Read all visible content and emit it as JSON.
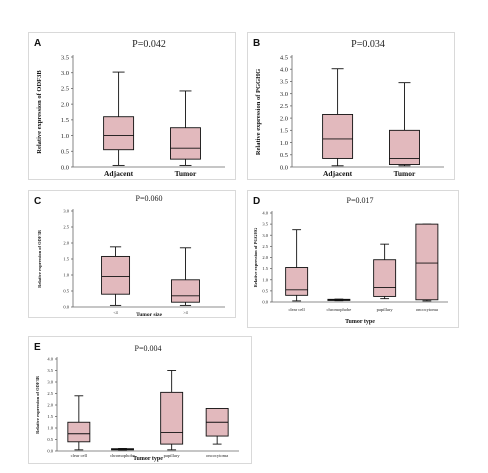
{
  "colors": {
    "box_fill": "#e2b9bd",
    "box_stroke": "#111111",
    "axis": "#666666"
  },
  "chart_data": [
    {
      "panel": "A",
      "type": "box",
      "title": "P=0.042",
      "xlabel": "",
      "ylabel": "Relative expression of ODF3B",
      "ylim": [
        0,
        3.5
      ],
      "yticks": [
        "0.0",
        "0.5",
        "1.0",
        "1.5",
        "2.0",
        "2.5",
        "3.0",
        "3.5"
      ],
      "categories": [
        "Adjacent",
        "Tumor"
      ],
      "boxes": [
        {
          "min": 0.05,
          "q1": 0.55,
          "median": 1.0,
          "q3": 1.6,
          "max": 3.02
        },
        {
          "min": 0.05,
          "q1": 0.25,
          "median": 0.6,
          "q3": 1.25,
          "max": 2.42
        }
      ]
    },
    {
      "panel": "B",
      "type": "box",
      "title": "P=0.034",
      "xlabel": "",
      "ylabel": "Relative expression of PGGHG",
      "ylim": [
        0,
        4.5
      ],
      "yticks": [
        "0.0",
        "0.5",
        "1.0",
        "1.5",
        "2.0",
        "2.5",
        "3.0",
        "3.5",
        "4.0",
        "4.5"
      ],
      "categories": [
        "Adjacent",
        "Tumor"
      ],
      "boxes": [
        {
          "min": 0.05,
          "q1": 0.35,
          "median": 1.15,
          "q3": 2.15,
          "max": 4.02
        },
        {
          "min": 0.05,
          "q1": 0.1,
          "median": 0.35,
          "q3": 1.5,
          "max": 3.45
        }
      ]
    },
    {
      "panel": "C",
      "type": "box",
      "title": "P=0.060",
      "xlabel": "Tumor size",
      "ylabel": "Relative expression of ODF3B",
      "ylim": [
        0,
        3.0
      ],
      "yticks": [
        "0.0",
        "0.5",
        "1.0",
        "1.5",
        "2.0",
        "2.5",
        "3.0"
      ],
      "categories": [
        "<4",
        ">4"
      ],
      "boxes": [
        {
          "min": 0.05,
          "q1": 0.4,
          "median": 0.95,
          "q3": 1.58,
          "max": 1.88
        },
        {
          "min": 0.05,
          "q1": 0.15,
          "median": 0.35,
          "q3": 0.85,
          "max": 1.85
        }
      ]
    },
    {
      "panel": "D",
      "type": "box",
      "title": "P=0.017",
      "xlabel": "Tumor type",
      "ylabel": "Relative expression of PGGHG",
      "ylim": [
        0,
        4.0
      ],
      "yticks": [
        "0.0",
        "0.5",
        "1.0",
        "1.5",
        "2.0",
        "2.5",
        "3.0",
        "3.5",
        "4.0"
      ],
      "categories": [
        "clear cell",
        "chromophobe",
        "papillary",
        "oncocytoma"
      ],
      "boxes": [
        {
          "min": 0.05,
          "q1": 0.3,
          "median": 0.55,
          "q3": 1.55,
          "max": 3.25
        },
        {
          "min": 0.06,
          "q1": 0.07,
          "median": 0.09,
          "q3": 0.12,
          "max": 0.13
        },
        {
          "min": 0.15,
          "q1": 0.25,
          "median": 0.65,
          "q3": 1.9,
          "max": 2.6
        },
        {
          "min": 0.05,
          "q1": 0.1,
          "median": 1.75,
          "q3": 3.5,
          "max": 3.5
        }
      ]
    },
    {
      "panel": "E",
      "type": "box",
      "title": "P=0.004",
      "xlabel": "Tumor type",
      "ylabel": "Relative expression of ODF3B",
      "ylim": [
        0,
        4.0
      ],
      "yticks": [
        "0.0",
        "0.5",
        "1.0",
        "1.5",
        "2.0",
        "2.5",
        "3.0",
        "3.5",
        "4.0"
      ],
      "categories": [
        "clear cell",
        "chromophobe",
        "papillary",
        "oncocytoma"
      ],
      "boxes": [
        {
          "min": 0.05,
          "q1": 0.4,
          "median": 0.75,
          "q3": 1.25,
          "max": 2.4
        },
        {
          "min": 0.04,
          "q1": 0.05,
          "median": 0.07,
          "q3": 0.1,
          "max": 0.11
        },
        {
          "min": 0.05,
          "q1": 0.3,
          "median": 0.8,
          "q3": 2.55,
          "max": 3.5
        },
        {
          "min": 0.3,
          "q1": 0.65,
          "median": 1.25,
          "q3": 1.85,
          "max": 1.85
        }
      ]
    }
  ]
}
